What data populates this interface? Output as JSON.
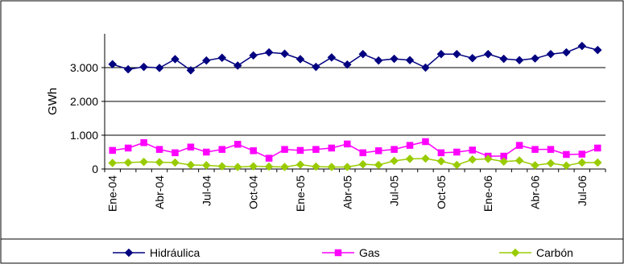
{
  "chart_data": {
    "type": "line",
    "ylabel": "GWh",
    "ylim": [
      0,
      4000
    ],
    "yticks": [
      0,
      1000,
      2000,
      3000
    ],
    "ytick_labels": [
      "0",
      "1.000",
      "2.000",
      "3.000"
    ],
    "grid": "horizontal",
    "legend_position": "bottom",
    "x": [
      "Ene-04",
      "Feb-04",
      "Mar-04",
      "Abr-04",
      "May-04",
      "Jun-04",
      "Jul-04",
      "Ago-04",
      "Sep-04",
      "Oct-04",
      "Nov-04",
      "Dic-04",
      "Ene-05",
      "Feb-05",
      "Mar-05",
      "Abr-05",
      "May-05",
      "Jun-05",
      "Jul-05",
      "Ago-05",
      "Sep-05",
      "Oct-05",
      "Nov-05",
      "Dic-05",
      "Ene-06",
      "Feb-06",
      "Mar-06",
      "Abr-06",
      "May-06",
      "Jun-06",
      "Jul-06",
      "Ago-06"
    ],
    "xtick_labels": [
      "Ene-04",
      "Abr-04",
      "Jul-04",
      "Oct-04",
      "Ene-05",
      "Abr-05",
      "Jul-05",
      "Oct-05",
      "Ene-06",
      "Abr-06",
      "Jul-06"
    ],
    "series": [
      {
        "name": "Hidráulica",
        "color": "#000080",
        "marker": "diamond",
        "values": [
          3100,
          2950,
          3020,
          2990,
          3250,
          2920,
          3210,
          3290,
          3060,
          3360,
          3450,
          3410,
          3250,
          3020,
          3300,
          3090,
          3400,
          3210,
          3260,
          3220,
          3000,
          3400,
          3400,
          3280,
          3400,
          3260,
          3220,
          3270,
          3400,
          3450,
          3640,
          3520
        ]
      },
      {
        "name": "Gas",
        "color": "#FF00FF",
        "marker": "square",
        "values": [
          550,
          620,
          780,
          580,
          480,
          650,
          500,
          580,
          730,
          540,
          320,
          580,
          550,
          580,
          620,
          740,
          480,
          540,
          580,
          700,
          810,
          480,
          500,
          560,
          380,
          380,
          700,
          580,
          580,
          430,
          440,
          620
        ]
      },
      {
        "name": "Carbón",
        "color": "#99CC00",
        "marker": "diamond",
        "values": [
          180,
          190,
          210,
          200,
          190,
          120,
          110,
          80,
          60,
          80,
          70,
          60,
          130,
          70,
          60,
          60,
          140,
          120,
          240,
          300,
          310,
          230,
          120,
          280,
          300,
          220,
          250,
          110,
          170,
          100,
          190,
          190
        ]
      }
    ]
  }
}
